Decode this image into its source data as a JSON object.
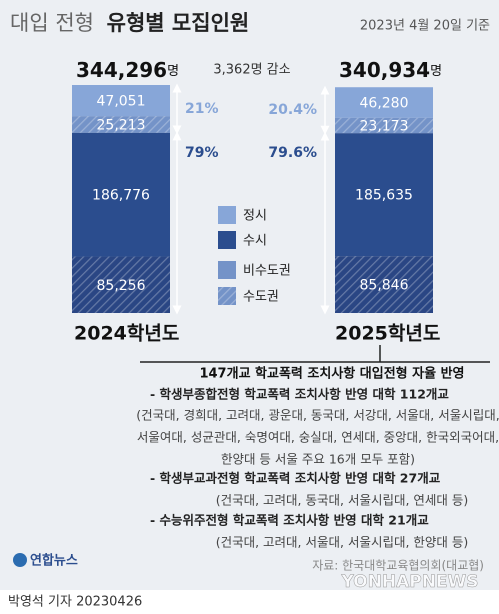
{
  "chart_data": {
    "type": "stacked_bar",
    "title_light": "대입 전형",
    "title_bold": "유형별 모집인원",
    "subtitle": "2023년 4월 20일 기준",
    "categories": [
      "2024학년도",
      "2025학년도"
    ],
    "series": [
      {
        "color": "#87a6d8",
        "hatched": false,
        "values": [
          47051,
          46280
        ],
        "value_labels": [
          "47,051",
          "46,280"
        ]
      },
      {
        "color": "#7493c8",
        "hatched": true,
        "values": [
          25213,
          23173
        ],
        "value_labels": [
          "25,213",
          "23,173"
        ]
      },
      {
        "color": "#2b4d8e",
        "hatched": false,
        "values": [
          186776,
          185635
        ],
        "value_labels": [
          "186,776",
          "185,635"
        ]
      },
      {
        "color": "#2a4684",
        "hatched": true,
        "values": [
          85256,
          85846
        ],
        "value_labels": [
          "85,256",
          "85,846"
        ]
      }
    ],
    "totals": [
      344296,
      340934
    ],
    "total_labels": [
      "344,296",
      "340,934"
    ],
    "unit": "명",
    "change_label": "3,362명 감소",
    "shares": [
      [
        21,
        79
      ],
      [
        20.4,
        79.6
      ]
    ],
    "share_labels": [
      [
        "21%",
        "79%"
      ],
      [
        "20.4%",
        "79.6%"
      ]
    ],
    "legend": [
      {
        "label": "정시",
        "color": "#87a6d8",
        "hatched": false
      },
      {
        "label": "수시",
        "color": "#2b4d8e",
        "hatched": false
      },
      {
        "label": "비수도권",
        "color": "#7493c8",
        "hatched": false
      },
      {
        "label": "수도권",
        "color": "#7493c8",
        "hatched": true
      }
    ]
  },
  "notes": {
    "heading": "147개교 학교폭력 조치사항 대입전형 자율 반영",
    "items": [
      {
        "title": "- 학생부종합전형 학교폭력 조치사항 반영 대학 112개교",
        "detail": [
          "(건국대, 경희대, 고려대, 광운대, 동국대, 서강대, 서울대, 서울시립대,",
          "서울여대, 성균관대, 숙명여대, 숭실대, 연세대, 중앙대, 한국외국어대,",
          "한양대 등 서울 주요 16개 모두 포함)"
        ]
      },
      {
        "title": "- 학생부교과전형 학교폭력 조치사항 반영 대학 27개교",
        "detail": [
          "(건국대, 고려대, 동국대, 서울시립대, 연세대 등)"
        ]
      },
      {
        "title": "- 수능위주전형 학교폭력 조치사항 반영 대학 21개교",
        "detail": [
          "(건국대, 고려대, 서울대, 서울시립대, 한양대 등)"
        ]
      }
    ]
  },
  "source": "자료: 한국대학교육협의회(대교협)",
  "logo": "연합뉴스",
  "watermark": "YONHAPNEWS",
  "credit": "박영석 기자  20230426"
}
